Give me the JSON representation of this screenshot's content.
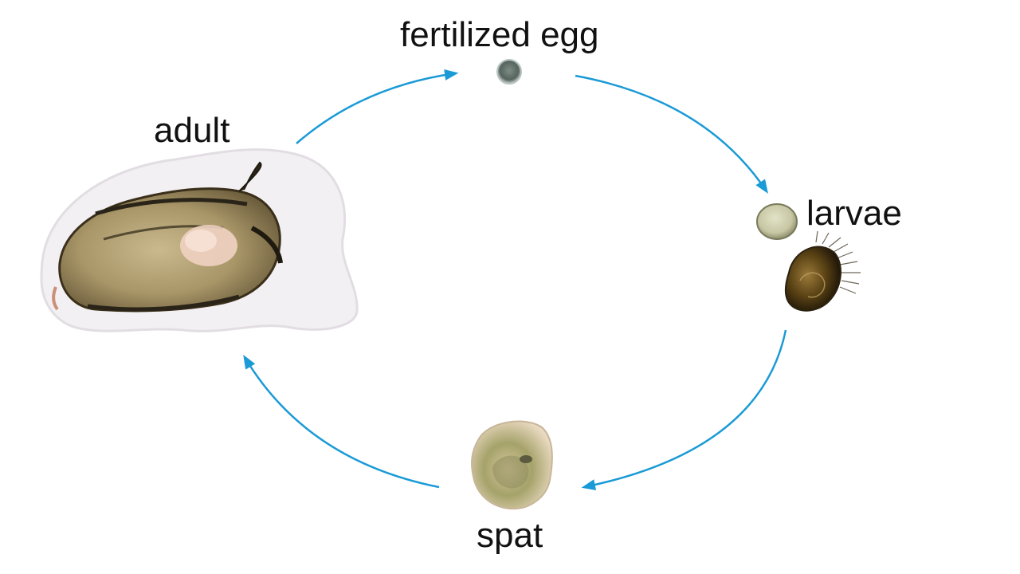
{
  "diagram": {
    "stages": {
      "egg": "fertilized egg",
      "adult": "adult",
      "larvae": "larvae",
      "spat": "spat"
    },
    "arrow_color": "#1a9ad6"
  }
}
